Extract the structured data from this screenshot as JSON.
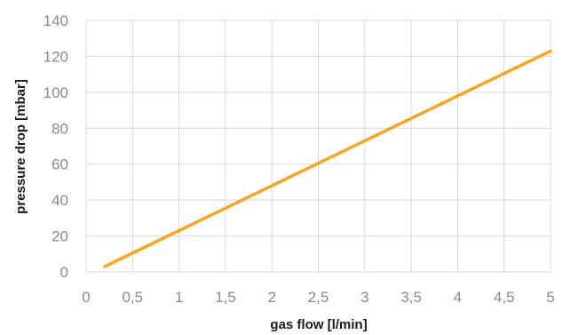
{
  "chart_data": {
    "type": "line",
    "title": "",
    "xlabel": "gas flow [l/min]",
    "ylabel": "pressure drop [mbar]",
    "xlim": [
      0,
      5
    ],
    "ylim": [
      0,
      140
    ],
    "x_ticks": [
      "0",
      "0,5",
      "1",
      "1,5",
      "2",
      "2,5",
      "3",
      "3,5",
      "4",
      "4,5",
      "5"
    ],
    "y_ticks": [
      "0",
      "20",
      "40",
      "60",
      "80",
      "100",
      "120",
      "140"
    ],
    "grid": true,
    "legend": "none",
    "series": [
      {
        "color": "#f5a623",
        "x": [
          0.2,
          5
        ],
        "y": [
          3,
          123
        ]
      }
    ]
  }
}
